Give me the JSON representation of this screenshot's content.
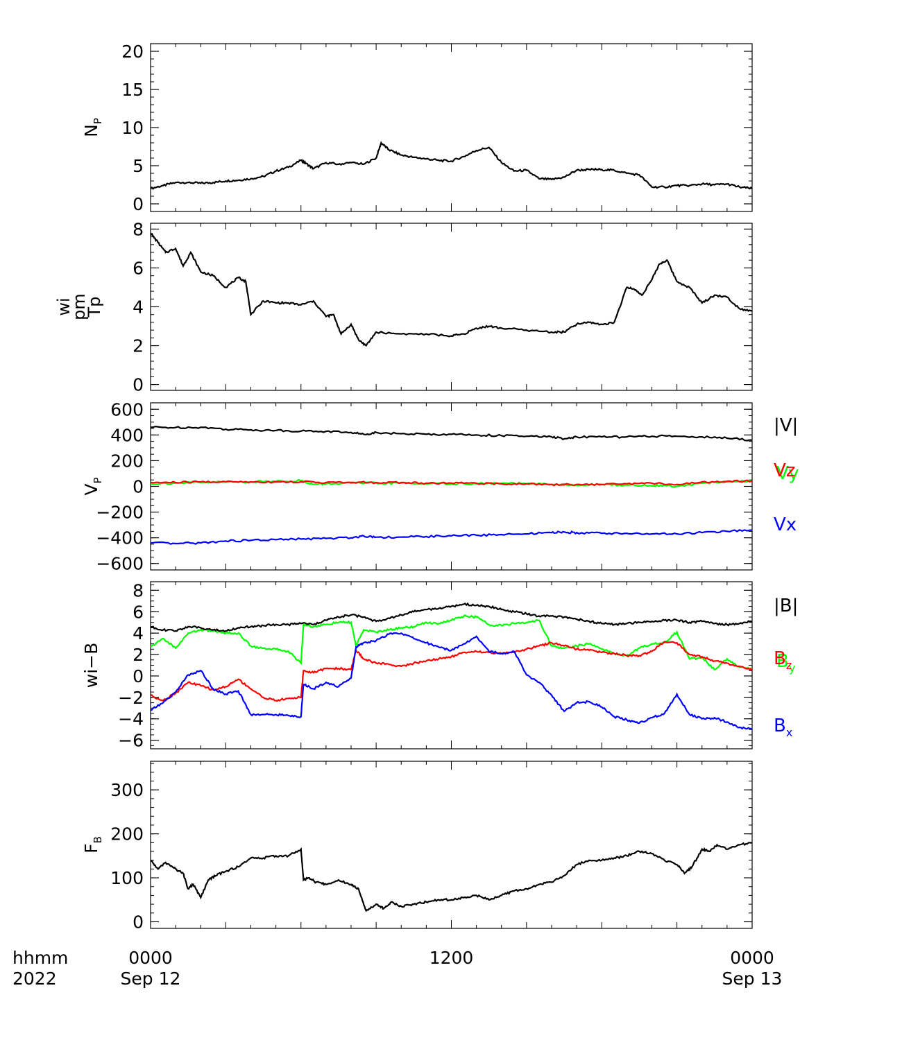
{
  "time_axis": {
    "label_line1": "hhmm",
    "label_line2": "2022",
    "ticks": [
      {
        "hours": 0,
        "time": "0000",
        "date": "Sep 12"
      },
      {
        "hours": 12,
        "time": "1200",
        "date": ""
      },
      {
        "hours": 24,
        "time": "0000",
        "date": "Sep 13"
      }
    ],
    "range_hours": [
      0,
      24
    ]
  },
  "colors": {
    "black": "#000000",
    "red": "#ff0000",
    "green": "#00ff00",
    "blue": "#0000ff"
  },
  "chart_data": [
    {
      "type": "line",
      "ylabel": "N",
      "ylabel_sub": "P",
      "ylim": [
        -1,
        21
      ],
      "yticks": [
        0,
        5,
        10,
        15,
        20
      ],
      "y_minor": 1,
      "legend": [],
      "series": [
        {
          "color": "#000000",
          "x": [
            0,
            0.5,
            1,
            1.5,
            2,
            2.5,
            3,
            3.5,
            4,
            4.5,
            5,
            5.5,
            6,
            6.2,
            6.5,
            7,
            7.5,
            8,
            8.5,
            9,
            9.2,
            9.5,
            10,
            10.5,
            11,
            11.5,
            12,
            12.5,
            13,
            13.5,
            14,
            14.5,
            15,
            15.5,
            16,
            16.5,
            17,
            17.5,
            18,
            18.5,
            19,
            19.5,
            20,
            20.5,
            21,
            21.5,
            22,
            22.5,
            23,
            23.5,
            24
          ],
          "y": [
            2,
            2.4,
            2.8,
            2.8,
            2.7,
            2.8,
            3,
            3.1,
            3.3,
            3.6,
            4.3,
            4.8,
            5.7,
            5.3,
            4.6,
            5.4,
            5.2,
            5.4,
            5.2,
            6,
            8,
            7.1,
            6.4,
            6.1,
            5.9,
            5.7,
            5.6,
            6.2,
            7,
            7.4,
            5.4,
            4.3,
            4.4,
            3.3,
            3.2,
            3.5,
            4.4,
            4.5,
            4.5,
            4.4,
            4,
            3.8,
            2.2,
            2.2,
            2.4,
            2.4,
            2.6,
            2.5,
            2.6,
            2.2,
            2
          ]
        }
      ]
    },
    {
      "type": "line",
      "ylabel": "Tp",
      "ylabel_extra": [
        "wi",
        "pm"
      ],
      "ylim": [
        -0.3,
        8.3
      ],
      "yticks": [
        0,
        2,
        4,
        6,
        8
      ],
      "y_minor": 0.4,
      "legend": [],
      "series": [
        {
          "color": "#000000",
          "x": [
            0,
            0.3,
            0.6,
            1,
            1.3,
            1.6,
            2,
            2.5,
            3,
            3.5,
            3.8,
            4,
            4.5,
            5,
            5.5,
            6,
            6.5,
            7,
            7.3,
            7.6,
            8,
            8.3,
            8.6,
            9,
            10,
            11,
            12,
            12.5,
            13,
            13.5,
            14,
            15,
            16,
            16.5,
            17,
            17.5,
            18,
            18.5,
            19,
            19.3,
            19.6,
            20,
            20.3,
            20.6,
            21,
            21.5,
            22,
            22.5,
            23,
            23.5,
            24
          ],
          "y": [
            7.8,
            7.3,
            6.8,
            7,
            6.1,
            6.8,
            5.8,
            5.6,
            5,
            5.5,
            5.3,
            3.6,
            4.3,
            4.2,
            4.2,
            4.1,
            4.3,
            3.5,
            3.6,
            2.6,
            3.1,
            2.3,
            2,
            2.7,
            2.6,
            2.6,
            2.5,
            2.6,
            2.9,
            3,
            2.9,
            2.8,
            2.7,
            2.7,
            3.1,
            3.2,
            3.1,
            3.2,
            5,
            4.9,
            4.6,
            5.4,
            6.2,
            6.4,
            5.3,
            5,
            4.2,
            4.6,
            4.5,
            3.9,
            3.8
          ]
        }
      ]
    },
    {
      "type": "line",
      "ylabel": "V",
      "ylabel_sub": "P",
      "ylim": [
        -650,
        650
      ],
      "yticks": [
        -600,
        -400,
        -200,
        0,
        200,
        400,
        600
      ],
      "y_minor": 50,
      "legend": [
        {
          "text": "|V|",
          "color": "#000000"
        },
        {
          "text": "Vz",
          "color": "#ff0000",
          "shadow": "Vy",
          "shadow_color": "#00ff00"
        },
        {
          "text": "Vx",
          "color": "#0000ff"
        }
      ],
      "series": [
        {
          "color": "#000000",
          "name": "|V|",
          "x": [
            0,
            1,
            2,
            3,
            4,
            5,
            6,
            7,
            8,
            8.5,
            9,
            10,
            11,
            12,
            13,
            14,
            15,
            16,
            16.5,
            17,
            18,
            19,
            20,
            21,
            22,
            23,
            24
          ],
          "y": [
            460,
            458,
            460,
            445,
            440,
            435,
            430,
            428,
            420,
            405,
            420,
            410,
            405,
            405,
            400,
            395,
            390,
            385,
            370,
            385,
            385,
            385,
            390,
            390,
            385,
            375,
            360
          ]
        },
        {
          "color": "#00ff00",
          "name": "Vy",
          "x": [
            0,
            1,
            2,
            3,
            4,
            5,
            6,
            6.5,
            7,
            8,
            9,
            10,
            11,
            12,
            13,
            14,
            15,
            16,
            17,
            18,
            19,
            20,
            20.5,
            21,
            22,
            23,
            24
          ],
          "y": [
            20,
            25,
            30,
            35,
            35,
            40,
            45,
            15,
            20,
            25,
            25,
            25,
            20,
            20,
            20,
            25,
            20,
            15,
            10,
            15,
            10,
            5,
            10,
            0,
            25,
            35,
            40
          ]
        },
        {
          "color": "#ff0000",
          "name": "Vz",
          "x": [
            0,
            1,
            2,
            3,
            4,
            5,
            6,
            7,
            8,
            9,
            10,
            11,
            12,
            13,
            14,
            15,
            16,
            17,
            18,
            19,
            20,
            21,
            22,
            23,
            24
          ],
          "y": [
            30,
            30,
            35,
            35,
            35,
            35,
            35,
            30,
            30,
            30,
            30,
            25,
            25,
            25,
            20,
            20,
            15,
            15,
            15,
            20,
            25,
            15,
            35,
            40,
            40
          ]
        },
        {
          "color": "#0000ff",
          "name": "Vx",
          "x": [
            0,
            1,
            2,
            3,
            4,
            5,
            6,
            7,
            8,
            8.5,
            9,
            10,
            11,
            12,
            13,
            14,
            15,
            16,
            16.5,
            17,
            18,
            19,
            20,
            21,
            22,
            23,
            24
          ],
          "y": [
            -440,
            -445,
            -440,
            -425,
            -420,
            -415,
            -410,
            -405,
            -400,
            -385,
            -395,
            -395,
            -390,
            -385,
            -380,
            -375,
            -370,
            -360,
            -355,
            -360,
            -365,
            -365,
            -370,
            -370,
            -360,
            -350,
            -340
          ]
        }
      ]
    },
    {
      "type": "line",
      "ylabel": "wi−B",
      "ylim": [
        -6.8,
        8.8
      ],
      "yticks": [
        -6,
        -4,
        -2,
        0,
        2,
        4,
        6,
        8
      ],
      "y_minor": 0.5,
      "legend": [
        {
          "text": "|B|",
          "color": "#000000"
        },
        {
          "text": "B",
          "sub": "z",
          "color": "#ff0000",
          "shadow": "B",
          "shadow_sub": "y",
          "shadow_color": "#00ff00"
        },
        {
          "text": "B",
          "sub": "x",
          "color": "#0000ff"
        }
      ],
      "series": [
        {
          "color": "#00ff00",
          "name": "By",
          "x": [
            0,
            0.5,
            1,
            1.5,
            2,
            2.5,
            3,
            3.5,
            4,
            4.5,
            5,
            5.5,
            6,
            6.1,
            6.5,
            7,
            7.5,
            8,
            8.2,
            8.5,
            9,
            9.5,
            10,
            10.5,
            11,
            11.5,
            12,
            12.5,
            13,
            13.5,
            14,
            14.5,
            15,
            15.5,
            16,
            16.5,
            17,
            17.5,
            18,
            18.5,
            19,
            19.5,
            20,
            20.5,
            21,
            21.5,
            22,
            22.5,
            23,
            23.5,
            24
          ],
          "y": [
            2.7,
            3.5,
            2.6,
            4,
            4.3,
            4.2,
            4,
            4,
            2.8,
            2.6,
            2.5,
            2.3,
            1.2,
            4.8,
            4.6,
            4.8,
            5,
            5,
            2.8,
            4.3,
            4.1,
            4.3,
            4.5,
            4.6,
            5,
            4.9,
            5.2,
            5.6,
            5.5,
            4.8,
            4.7,
            4.9,
            5,
            5.2,
            2.8,
            2.6,
            2.8,
            3,
            2.5,
            2.1,
            1.9,
            2.6,
            3,
            3.1,
            4.1,
            1.6,
            1.7,
            0.6,
            1.6,
            0.8,
            0.7
          ]
        },
        {
          "color": "#ff0000",
          "name": "Bz",
          "x": [
            0,
            0.5,
            1,
            1.5,
            2,
            2.5,
            3,
            3.5,
            4,
            4.5,
            5,
            5.5,
            6,
            6.1,
            6.5,
            7,
            7.5,
            8,
            8.2,
            8.5,
            9,
            9.5,
            10,
            10.5,
            11,
            11.5,
            12,
            12.5,
            13,
            13.5,
            14,
            14.5,
            15,
            15.5,
            16,
            16.5,
            17,
            17.5,
            18,
            18.5,
            19,
            19.5,
            20,
            20.5,
            21,
            21.5,
            22,
            22.5,
            23,
            23.5,
            24
          ],
          "y": [
            -1.8,
            -2.3,
            -1.6,
            -0.6,
            -0.9,
            -1.3,
            -1,
            -0.3,
            -1.2,
            -2,
            -2.3,
            -2.1,
            -2,
            0.5,
            0.3,
            0.7,
            0.7,
            0.6,
            2.4,
            1.6,
            1.2,
            1.1,
            0.9,
            1.2,
            1.4,
            1.6,
            1.8,
            2.2,
            2.3,
            2.2,
            2.1,
            2.2,
            2.5,
            2.8,
            3.1,
            2.8,
            2.5,
            2.4,
            2.2,
            2.1,
            1.9,
            1.9,
            2.3,
            3.2,
            3.1,
            2,
            1.8,
            1.4,
            1.2,
            0.9,
            0.6
          ]
        },
        {
          "color": "#0000ff",
          "name": "Bx",
          "x": [
            0,
            0.5,
            1,
            1.5,
            2,
            2.5,
            3,
            3.5,
            4,
            4.5,
            5,
            5.5,
            6,
            6.1,
            6.5,
            7,
            7.5,
            8,
            8.2,
            8.5,
            9,
            9.5,
            10,
            10.5,
            11,
            11.5,
            12,
            12.5,
            13,
            13.5,
            14,
            14.5,
            15,
            15.5,
            16,
            16.5,
            17,
            17.5,
            18,
            18.5,
            19,
            19.5,
            20,
            20.5,
            21,
            21.5,
            22,
            22.5,
            23,
            23.5,
            24
          ],
          "y": [
            -3.2,
            -2.5,
            -1.5,
            0.1,
            0.5,
            -1.2,
            -1.7,
            -1.4,
            -3.6,
            -3.6,
            -3.6,
            -3.7,
            -3.8,
            -0.8,
            -1.2,
            -0.6,
            -1,
            -0.2,
            2.7,
            3.1,
            3.3,
            3.9,
            4,
            3.5,
            3.1,
            2.7,
            2.4,
            3,
            3.7,
            2.3,
            2.1,
            2.3,
            0.1,
            -0.6,
            -1.8,
            -3.3,
            -2.5,
            -2.4,
            -2.9,
            -3.8,
            -4.1,
            -4.4,
            -3.9,
            -3.5,
            -1.7,
            -3.6,
            -4,
            -3.9,
            -4.3,
            -4.8,
            -5
          ]
        },
        {
          "color": "#000000",
          "name": "|B|",
          "x": [
            0,
            0.5,
            1,
            1.5,
            2,
            2.5,
            3,
            3.5,
            4,
            4.5,
            5,
            5.5,
            6,
            6.5,
            7,
            7.5,
            8,
            8.5,
            9,
            9.5,
            10,
            10.5,
            11,
            11.5,
            12,
            12.5,
            13,
            13.5,
            14,
            14.5,
            15,
            15.5,
            16,
            16.5,
            17,
            17.5,
            18,
            18.5,
            19,
            19.5,
            20,
            20.5,
            21,
            21.5,
            22,
            22.5,
            23,
            23.5,
            24
          ],
          "y": [
            4.6,
            4.3,
            4.2,
            4.6,
            4.5,
            4.3,
            4.2,
            4.5,
            4.6,
            4.7,
            4.8,
            4.8,
            4.9,
            4.8,
            5.2,
            5.5,
            5.7,
            5.5,
            5.1,
            5.4,
            5.7,
            6,
            6.2,
            6.3,
            6.5,
            6.7,
            6.6,
            6.5,
            6.2,
            6,
            5.8,
            5.6,
            5.6,
            5.5,
            5.3,
            5.1,
            4.9,
            4.8,
            4.9,
            5,
            5.1,
            5.2,
            5.2,
            5,
            5.1,
            4.9,
            4.8,
            4.9,
            5.1
          ]
        }
      ]
    },
    {
      "type": "line",
      "ylabel": "F",
      "ylabel_sub": "B",
      "ylim": [
        -15,
        365
      ],
      "yticks": [
        0,
        100,
        200,
        300
      ],
      "y_minor": 20,
      "legend": [],
      "series": [
        {
          "color": "#000000",
          "x": [
            0,
            0.3,
            0.6,
            1,
            1.3,
            1.5,
            1.7,
            2,
            2.3,
            2.6,
            3,
            3.5,
            4,
            4.5,
            5,
            5.5,
            6,
            6.1,
            6.3,
            6.6,
            7,
            7.5,
            8,
            8.3,
            8.6,
            9,
            9.3,
            9.6,
            10,
            10.5,
            11,
            11.5,
            12,
            12.5,
            13,
            13.5,
            14,
            14.5,
            15,
            15.5,
            16,
            16.5,
            17,
            17.5,
            18,
            18.5,
            19,
            19.5,
            20,
            20.5,
            21,
            21.3,
            21.6,
            22,
            22.3,
            22.6,
            23,
            23.5,
            24
          ],
          "y": [
            140,
            120,
            135,
            120,
            110,
            75,
            85,
            55,
            95,
            105,
            115,
            125,
            145,
            145,
            150,
            150,
            165,
            95,
            100,
            90,
            85,
            95,
            85,
            75,
            25,
            40,
            30,
            45,
            35,
            40,
            45,
            50,
            50,
            55,
            60,
            50,
            60,
            70,
            75,
            85,
            90,
            105,
            130,
            140,
            140,
            145,
            150,
            160,
            155,
            140,
            130,
            110,
            125,
            165,
            160,
            175,
            165,
            175,
            180
          ]
        }
      ]
    }
  ]
}
